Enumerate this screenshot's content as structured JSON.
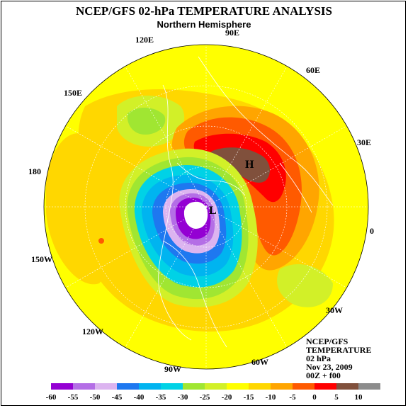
{
  "title": "NCEP/GFS 02-hPa TEMPERATURE ANALYSIS",
  "subtitle": "Northern Hemisphere",
  "longitude_labels": [
    {
      "key": "90E",
      "text": "90E"
    },
    {
      "key": "120E",
      "text": "120E"
    },
    {
      "key": "60E",
      "text": "60E"
    },
    {
      "key": "150E",
      "text": "150E"
    },
    {
      "key": "30E",
      "text": "30E"
    },
    {
      "key": "180",
      "text": "180"
    },
    {
      "key": "0",
      "text": "0"
    },
    {
      "key": "150W",
      "text": "150W"
    },
    {
      "key": "30W",
      "text": "30W"
    },
    {
      "key": "120W",
      "text": "120W"
    },
    {
      "key": "60W",
      "text": "60W"
    },
    {
      "key": "90W",
      "text": "90W"
    }
  ],
  "markers": {
    "high": "H",
    "low": "L"
  },
  "info_block": {
    "line1": "NCEP/GFS",
    "line2": "TEMPERATURE",
    "line3": "02 hPa",
    "line4": "Nov 23, 2009",
    "line5": "00Z + f00"
  },
  "colorbar": {
    "ticks": [
      "-60",
      "-55",
      "-50",
      "-45",
      "-40",
      "-35",
      "-30",
      "-25",
      "-20",
      "-15",
      "-10",
      "-5",
      "0",
      "5",
      "10"
    ],
    "colors": [
      "#9400d3",
      "#b46ee6",
      "#dcb4f0",
      "#1e78f0",
      "#00b4f0",
      "#00d2e6",
      "#a0e632",
      "#d2f028",
      "#ffff00",
      "#ffd700",
      "#ffa500",
      "#ff5a00",
      "#ff0000",
      "#80503c",
      "#8c8c8c"
    ]
  }
}
